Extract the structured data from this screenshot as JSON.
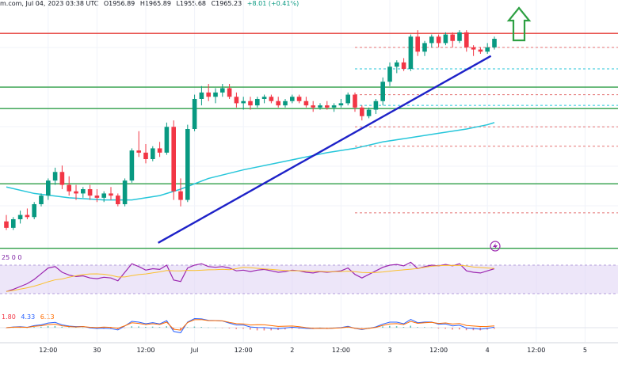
{
  "header": {
    "source": "m.com, Jul 04, 2023 03:38 UTC",
    "open": "O1956.89",
    "high": "H1965.89",
    "low": "L1955.68",
    "close": "C1965.23",
    "change": "+8.01 (+0.41%)"
  },
  "rsi_label": "25 0 0",
  "macd_label": {
    "a": "1.80",
    "b": "4.33",
    "c": "6.13"
  },
  "colors": {
    "up": "#089981",
    "down": "#f23645",
    "ma": "#26c6da",
    "trend": "#1e22c8",
    "hline_green": "#2e9e47",
    "hline_red": "#e53935",
    "rsi": "#9c27b0",
    "rsi_band": "#e1d6f5",
    "arrow": "#2ea043"
  },
  "chart_data": {
    "type": "candlestick",
    "title": "",
    "ylabel": "",
    "xlabel": "",
    "ylim": [
      1880,
      1985
    ],
    "x_ticks": [
      "12:00",
      "30",
      "12:00",
      "Jul",
      "12:00",
      "2",
      "12:00",
      "3",
      "12:00",
      "4",
      "12:00",
      "5"
    ],
    "candles": [
      {
        "o": 1893,
        "h": 1896,
        "l": 1889,
        "c": 1890
      },
      {
        "o": 1890,
        "h": 1895,
        "l": 1889,
        "c": 1894
      },
      {
        "o": 1894,
        "h": 1898,
        "l": 1892,
        "c": 1896
      },
      {
        "o": 1896,
        "h": 1899,
        "l": 1894,
        "c": 1895
      },
      {
        "o": 1895,
        "h": 1902,
        "l": 1894,
        "c": 1901
      },
      {
        "o": 1901,
        "h": 1906,
        "l": 1900,
        "c": 1905
      },
      {
        "o": 1905,
        "h": 1913,
        "l": 1903,
        "c": 1912
      },
      {
        "o": 1912,
        "h": 1918,
        "l": 1910,
        "c": 1916
      },
      {
        "o": 1916,
        "h": 1919,
        "l": 1908,
        "c": 1910
      },
      {
        "o": 1910,
        "h": 1914,
        "l": 1905,
        "c": 1907
      },
      {
        "o": 1907,
        "h": 1910,
        "l": 1903,
        "c": 1906
      },
      {
        "o": 1906,
        "h": 1909,
        "l": 1904,
        "c": 1908
      },
      {
        "o": 1908,
        "h": 1910,
        "l": 1903,
        "c": 1905
      },
      {
        "o": 1905,
        "h": 1908,
        "l": 1902,
        "c": 1904
      },
      {
        "o": 1904,
        "h": 1907,
        "l": 1902,
        "c": 1906
      },
      {
        "o": 1906,
        "h": 1909,
        "l": 1903,
        "c": 1905
      },
      {
        "o": 1905,
        "h": 1906,
        "l": 1900,
        "c": 1901
      },
      {
        "o": 1901,
        "h": 1913,
        "l": 1900,
        "c": 1912
      },
      {
        "o": 1912,
        "h": 1927,
        "l": 1911,
        "c": 1926
      },
      {
        "o": 1926,
        "h": 1935,
        "l": 1923,
        "c": 1925
      },
      {
        "o": 1925,
        "h": 1929,
        "l": 1920,
        "c": 1922
      },
      {
        "o": 1922,
        "h": 1928,
        "l": 1921,
        "c": 1927
      },
      {
        "o": 1927,
        "h": 1930,
        "l": 1923,
        "c": 1925
      },
      {
        "o": 1925,
        "h": 1939,
        "l": 1924,
        "c": 1937
      },
      {
        "o": 1937,
        "h": 1940,
        "l": 1903,
        "c": 1907
      },
      {
        "o": 1907,
        "h": 1913,
        "l": 1900,
        "c": 1903
      },
      {
        "o": 1903,
        "h": 1938,
        "l": 1902,
        "c": 1936
      },
      {
        "o": 1936,
        "h": 1952,
        "l": 1935,
        "c": 1950
      },
      {
        "o": 1950,
        "h": 1956,
        "l": 1947,
        "c": 1953
      },
      {
        "o": 1953,
        "h": 1957,
        "l": 1949,
        "c": 1951
      },
      {
        "o": 1951,
        "h": 1955,
        "l": 1948,
        "c": 1953
      },
      {
        "o": 1953,
        "h": 1957,
        "l": 1951,
        "c": 1955
      },
      {
        "o": 1955,
        "h": 1957,
        "l": 1950,
        "c": 1951
      },
      {
        "o": 1951,
        "h": 1953,
        "l": 1946,
        "c": 1948
      },
      {
        "o": 1948,
        "h": 1951,
        "l": 1945,
        "c": 1949
      },
      {
        "o": 1949,
        "h": 1951,
        "l": 1945,
        "c": 1947
      },
      {
        "o": 1947,
        "h": 1951,
        "l": 1946,
        "c": 1950
      },
      {
        "o": 1950,
        "h": 1952,
        "l": 1948,
        "c": 1951
      },
      {
        "o": 1951,
        "h": 1952,
        "l": 1948,
        "c": 1949
      },
      {
        "o": 1949,
        "h": 1951,
        "l": 1946,
        "c": 1947
      },
      {
        "o": 1947,
        "h": 1950,
        "l": 1946,
        "c": 1949
      },
      {
        "o": 1949,
        "h": 1952,
        "l": 1948,
        "c": 1951
      },
      {
        "o": 1951,
        "h": 1952,
        "l": 1948,
        "c": 1949
      },
      {
        "o": 1949,
        "h": 1951,
        "l": 1946,
        "c": 1947
      },
      {
        "o": 1947,
        "h": 1949,
        "l": 1944,
        "c": 1946
      },
      {
        "o": 1946,
        "h": 1948,
        "l": 1945,
        "c": 1947
      },
      {
        "o": 1947,
        "h": 1949,
        "l": 1945,
        "c": 1946
      },
      {
        "o": 1946,
        "h": 1948,
        "l": 1944,
        "c": 1947
      },
      {
        "o": 1947,
        "h": 1950,
        "l": 1946,
        "c": 1948
      },
      {
        "o": 1948,
        "h": 1953,
        "l": 1947,
        "c": 1952
      },
      {
        "o": 1952,
        "h": 1953,
        "l": 1944,
        "c": 1946
      },
      {
        "o": 1946,
        "h": 1947,
        "l": 1940,
        "c": 1942
      },
      {
        "o": 1942,
        "h": 1946,
        "l": 1941,
        "c": 1945
      },
      {
        "o": 1945,
        "h": 1950,
        "l": 1943,
        "c": 1949
      },
      {
        "o": 1949,
        "h": 1960,
        "l": 1947,
        "c": 1958
      },
      {
        "o": 1958,
        "h": 1967,
        "l": 1956,
        "c": 1965
      },
      {
        "o": 1965,
        "h": 1968,
        "l": 1962,
        "c": 1967
      },
      {
        "o": 1967,
        "h": 1969,
        "l": 1963,
        "c": 1964
      },
      {
        "o": 1964,
        "h": 1980,
        "l": 1963,
        "c": 1979
      },
      {
        "o": 1979,
        "h": 1982,
        "l": 1970,
        "c": 1972
      },
      {
        "o": 1972,
        "h": 1977,
        "l": 1970,
        "c": 1976
      },
      {
        "o": 1976,
        "h": 1980,
        "l": 1974,
        "c": 1979
      },
      {
        "o": 1979,
        "h": 1980,
        "l": 1974,
        "c": 1976
      },
      {
        "o": 1976,
        "h": 1981,
        "l": 1975,
        "c": 1980
      },
      {
        "o": 1980,
        "h": 1981,
        "l": 1974,
        "c": 1977
      },
      {
        "o": 1977,
        "h": 1982,
        "l": 1976,
        "c": 1981
      },
      {
        "o": 1981,
        "h": 1982,
        "l": 1972,
        "c": 1974
      },
      {
        "o": 1974,
        "h": 1975,
        "l": 1970,
        "c": 1973
      },
      {
        "o": 1973,
        "h": 1974,
        "l": 1971,
        "c": 1972
      },
      {
        "o": 1972,
        "h": 1976,
        "l": 1971,
        "c": 1974
      },
      {
        "o": 1974,
        "h": 1979,
        "l": 1973,
        "c": 1978
      }
    ],
    "ma_series": [
      [
        0,
        1909
      ],
      [
        4,
        1906
      ],
      [
        9,
        1904
      ],
      [
        14,
        1903
      ],
      [
        18,
        1903
      ],
      [
        22,
        1905
      ],
      [
        25,
        1908
      ],
      [
        29,
        1913
      ],
      [
        34,
        1917
      ],
      [
        40,
        1921
      ],
      [
        46,
        1925
      ],
      [
        50,
        1927
      ],
      [
        54,
        1930
      ],
      [
        58,
        1932
      ],
      [
        62,
        1934
      ],
      [
        66,
        1936
      ],
      [
        69,
        1938
      ],
      [
        70,
        1939
      ]
    ],
    "hlines": [
      {
        "value": 1980.5,
        "color": "red",
        "style": "solid"
      },
      {
        "value": 1955.5,
        "color": "green",
        "style": "solid"
      },
      {
        "value": 1945.5,
        "color": "green",
        "style": "solid"
      },
      {
        "value": 1910.5,
        "color": "green",
        "style": "solid"
      },
      {
        "value": 1880.5,
        "color": "green",
        "style": "solid"
      }
    ],
    "trendline": [
      [
        24.5,
        1883
      ],
      [
        69.5,
        1970
      ]
    ],
    "rsi": [
      33,
      36,
      40,
      44,
      50,
      58,
      66,
      68,
      60,
      56,
      54,
      55,
      52,
      51,
      53,
      52,
      48,
      60,
      72,
      68,
      63,
      65,
      64,
      70,
      49,
      47,
      66,
      70,
      72,
      68,
      67,
      68,
      66,
      62,
      63,
      61,
      63,
      64,
      62,
      60,
      61,
      63,
      62,
      60,
      59,
      61,
      60,
      61,
      62,
      66,
      57,
      52,
      57,
      62,
      67,
      70,
      71,
      69,
      74,
      65,
      68,
      70,
      69,
      71,
      69,
      72,
      62,
      60,
      59,
      62,
      65
    ]
  }
}
